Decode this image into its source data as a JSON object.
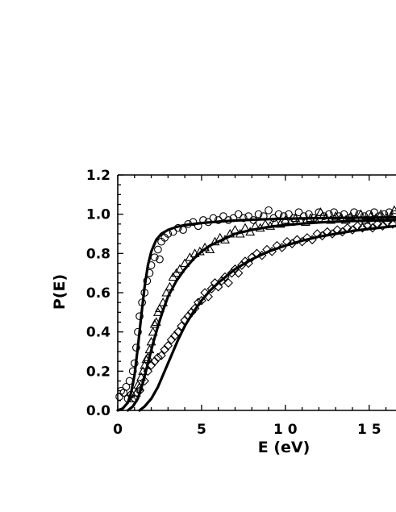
{
  "chart_data": {
    "type": "scatter",
    "title": "",
    "xlabel": "E  (eV)",
    "ylabel": "P(E)",
    "xlim": [
      0,
      16.6
    ],
    "ylim": [
      0,
      1.2
    ],
    "x_ticks": [
      0,
      5,
      10,
      15
    ],
    "x_tick_labels": [
      "0",
      "5",
      "1 0",
      "1 5"
    ],
    "y_ticks": [
      0,
      0.2,
      0.4,
      0.6,
      0.8,
      1.0,
      1.2
    ],
    "y_tick_labels": [
      "0.0",
      "0.2",
      "0.4",
      "0.6",
      "0.8",
      "1.0",
      "1.2"
    ],
    "grid": false,
    "legend": "none",
    "series": [
      {
        "marker": "circle",
        "color": "#000000",
        "points": [
          [
            0.1,
            0.07
          ],
          [
            0.2,
            0.1
          ],
          [
            0.35,
            0.09
          ],
          [
            0.5,
            0.12
          ],
          [
            0.6,
            0.06
          ],
          [
            0.7,
            0.15
          ],
          [
            0.8,
            0.08
          ],
          [
            0.9,
            0.2
          ],
          [
            1.0,
            0.24
          ],
          [
            1.1,
            0.32
          ],
          [
            1.2,
            0.4
          ],
          [
            1.3,
            0.48
          ],
          [
            1.45,
            0.55
          ],
          [
            1.6,
            0.6
          ],
          [
            1.75,
            0.66
          ],
          [
            1.9,
            0.7
          ],
          [
            2.0,
            0.74
          ],
          [
            2.2,
            0.78
          ],
          [
            2.4,
            0.82
          ],
          [
            2.5,
            0.77
          ],
          [
            2.6,
            0.86
          ],
          [
            2.8,
            0.88
          ],
          [
            3.0,
            0.9
          ],
          [
            3.3,
            0.91
          ],
          [
            3.6,
            0.93
          ],
          [
            3.9,
            0.92
          ],
          [
            4.2,
            0.95
          ],
          [
            4.5,
            0.96
          ],
          [
            4.8,
            0.94
          ],
          [
            5.1,
            0.97
          ],
          [
            5.4,
            0.96
          ],
          [
            5.7,
            0.98
          ],
          [
            6.0,
            0.97
          ],
          [
            6.3,
            0.99
          ],
          [
            6.6,
            0.97
          ],
          [
            6.9,
            0.98
          ],
          [
            7.2,
            1.0
          ],
          [
            7.5,
            0.98
          ],
          [
            7.8,
            0.99
          ],
          [
            8.1,
            0.97
          ],
          [
            8.4,
            1.0
          ],
          [
            8.7,
            0.99
          ],
          [
            9.0,
            1.02
          ],
          [
            9.3,
            0.98
          ],
          [
            9.6,
            1.0
          ],
          [
            9.9,
            0.99
          ],
          [
            10.2,
            1.0
          ],
          [
            10.5,
            0.98
          ],
          [
            10.8,
            1.01
          ],
          [
            11.1,
            0.99
          ],
          [
            11.4,
            1.0
          ],
          [
            11.7,
            0.98
          ],
          [
            12.0,
            1.01
          ],
          [
            12.3,
            0.99
          ],
          [
            12.6,
            1.0
          ],
          [
            12.9,
            1.01
          ],
          [
            13.2,
            0.99
          ],
          [
            13.5,
            1.0
          ],
          [
            13.8,
            0.98
          ],
          [
            14.1,
            1.01
          ],
          [
            14.4,
            1.0
          ],
          [
            14.7,
            0.99
          ],
          [
            15.0,
            1.0
          ],
          [
            15.3,
            1.01
          ],
          [
            15.6,
            0.99
          ],
          [
            15.9,
            1.0
          ],
          [
            16.2,
            1.01
          ],
          [
            16.5,
            1.0
          ]
        ]
      },
      {
        "marker": "triangle",
        "color": "#000000",
        "points": [
          [
            0.9,
            0.06
          ],
          [
            1.1,
            0.09
          ],
          [
            1.2,
            0.13
          ],
          [
            1.3,
            0.12
          ],
          [
            1.4,
            0.17
          ],
          [
            1.5,
            0.2
          ],
          [
            1.6,
            0.23
          ],
          [
            1.7,
            0.26
          ],
          [
            1.8,
            0.27
          ],
          [
            1.9,
            0.31
          ],
          [
            2.0,
            0.35
          ],
          [
            2.1,
            0.4
          ],
          [
            2.2,
            0.44
          ],
          [
            2.3,
            0.45
          ],
          [
            2.4,
            0.5
          ],
          [
            2.5,
            0.52
          ],
          [
            2.7,
            0.55
          ],
          [
            2.9,
            0.6
          ],
          [
            3.1,
            0.63
          ],
          [
            3.3,
            0.68
          ],
          [
            3.5,
            0.7
          ],
          [
            3.7,
            0.72
          ],
          [
            4.0,
            0.75
          ],
          [
            4.3,
            0.78
          ],
          [
            4.6,
            0.8
          ],
          [
            4.9,
            0.81
          ],
          [
            5.2,
            0.83
          ],
          [
            5.5,
            0.82
          ],
          [
            5.8,
            0.86
          ],
          [
            6.1,
            0.88
          ],
          [
            6.4,
            0.87
          ],
          [
            6.7,
            0.9
          ],
          [
            7.0,
            0.92
          ],
          [
            7.3,
            0.9
          ],
          [
            7.6,
            0.93
          ],
          [
            7.9,
            0.91
          ],
          [
            8.2,
            0.94
          ],
          [
            8.5,
            0.93
          ],
          [
            8.8,
            0.95
          ],
          [
            9.1,
            0.94
          ],
          [
            9.4,
            0.96
          ],
          [
            9.7,
            0.95
          ],
          [
            10.0,
            0.97
          ],
          [
            10.3,
            0.96
          ],
          [
            10.6,
            0.98
          ],
          [
            10.9,
            0.97
          ],
          [
            11.2,
            0.96
          ],
          [
            11.5,
            0.98
          ],
          [
            11.8,
            0.97
          ],
          [
            12.1,
            1.01
          ],
          [
            12.4,
            0.98
          ],
          [
            12.7,
            0.97
          ],
          [
            13.0,
            0.99
          ],
          [
            13.3,
            0.98
          ],
          [
            13.6,
            0.97
          ],
          [
            13.9,
            0.99
          ],
          [
            14.2,
            0.98
          ],
          [
            14.5,
            1.0
          ],
          [
            14.8,
            0.97
          ],
          [
            15.1,
            0.99
          ],
          [
            15.4,
            0.98
          ],
          [
            15.7,
            1.0
          ],
          [
            16.0,
            0.98
          ],
          [
            16.3,
            0.99
          ],
          [
            16.5,
            1.02
          ]
        ]
      },
      {
        "marker": "diamond",
        "color": "#000000",
        "points": [
          [
            1.0,
            0.06
          ],
          [
            1.3,
            0.1
          ],
          [
            1.6,
            0.15
          ],
          [
            1.8,
            0.2
          ],
          [
            2.0,
            0.23
          ],
          [
            2.2,
            0.25
          ],
          [
            2.4,
            0.27
          ],
          [
            2.6,
            0.28
          ],
          [
            2.8,
            0.31
          ],
          [
            3.0,
            0.33
          ],
          [
            3.2,
            0.36
          ],
          [
            3.4,
            0.38
          ],
          [
            3.6,
            0.4
          ],
          [
            3.8,
            0.43
          ],
          [
            4.0,
            0.46
          ],
          [
            4.2,
            0.48
          ],
          [
            4.4,
            0.5
          ],
          [
            4.6,
            0.52
          ],
          [
            4.8,
            0.55
          ],
          [
            5.0,
            0.56
          ],
          [
            5.2,
            0.6
          ],
          [
            5.4,
            0.58
          ],
          [
            5.6,
            0.62
          ],
          [
            5.8,
            0.65
          ],
          [
            6.0,
            0.63
          ],
          [
            6.2,
            0.66
          ],
          [
            6.4,
            0.68
          ],
          [
            6.6,
            0.65
          ],
          [
            6.8,
            0.7
          ],
          [
            7.0,
            0.72
          ],
          [
            7.2,
            0.7
          ],
          [
            7.4,
            0.74
          ],
          [
            7.6,
            0.76
          ],
          [
            7.8,
            0.75
          ],
          [
            8.0,
            0.78
          ],
          [
            8.3,
            0.8
          ],
          [
            8.6,
            0.79
          ],
          [
            8.9,
            0.82
          ],
          [
            9.2,
            0.81
          ],
          [
            9.5,
            0.84
          ],
          [
            9.8,
            0.83
          ],
          [
            10.1,
            0.86
          ],
          [
            10.4,
            0.85
          ],
          [
            10.7,
            0.87
          ],
          [
            11.0,
            0.86
          ],
          [
            11.3,
            0.88
          ],
          [
            11.6,
            0.87
          ],
          [
            11.9,
            0.9
          ],
          [
            12.2,
            0.89
          ],
          [
            12.5,
            0.91
          ],
          [
            12.8,
            0.9
          ],
          [
            13.1,
            0.92
          ],
          [
            13.4,
            0.91
          ],
          [
            13.7,
            0.93
          ],
          [
            14.0,
            0.92
          ],
          [
            14.3,
            0.94
          ],
          [
            14.6,
            0.93
          ],
          [
            14.9,
            0.94
          ],
          [
            15.2,
            0.93
          ],
          [
            15.5,
            0.95
          ],
          [
            15.8,
            0.94
          ],
          [
            16.1,
            0.96
          ],
          [
            16.4,
            0.95
          ]
        ]
      }
    ],
    "fit_curves": [
      {
        "style": "solid",
        "color": "#000000",
        "stroke_width": 3.2,
        "points": [
          [
            0.0,
            0.0
          ],
          [
            0.3,
            0.01
          ],
          [
            0.6,
            0.04
          ],
          [
            0.8,
            0.09
          ],
          [
            1.0,
            0.18
          ],
          [
            1.2,
            0.32
          ],
          [
            1.4,
            0.48
          ],
          [
            1.6,
            0.63
          ],
          [
            1.8,
            0.74
          ],
          [
            2.0,
            0.81
          ],
          [
            2.3,
            0.87
          ],
          [
            2.6,
            0.9
          ],
          [
            3.0,
            0.92
          ],
          [
            3.5,
            0.935
          ],
          [
            4.0,
            0.945
          ],
          [
            5.0,
            0.955
          ],
          [
            6.0,
            0.962
          ],
          [
            7.0,
            0.968
          ],
          [
            8.0,
            0.972
          ],
          [
            9.0,
            0.975
          ],
          [
            10.0,
            0.977
          ],
          [
            12.0,
            0.98
          ],
          [
            14.0,
            0.982
          ],
          [
            16.6,
            0.984
          ]
        ]
      },
      {
        "style": "solid",
        "color": "#000000",
        "stroke_width": 3.2,
        "points": [
          [
            0.6,
            0.0
          ],
          [
            0.9,
            0.02
          ],
          [
            1.2,
            0.06
          ],
          [
            1.5,
            0.14
          ],
          [
            1.8,
            0.24
          ],
          [
            2.1,
            0.34
          ],
          [
            2.4,
            0.43
          ],
          [
            2.7,
            0.51
          ],
          [
            3.0,
            0.58
          ],
          [
            3.5,
            0.66
          ],
          [
            4.0,
            0.72
          ],
          [
            4.5,
            0.77
          ],
          [
            5.0,
            0.81
          ],
          [
            5.5,
            0.84
          ],
          [
            6.0,
            0.86
          ],
          [
            7.0,
            0.9
          ],
          [
            8.0,
            0.92
          ],
          [
            9.0,
            0.935
          ],
          [
            10.0,
            0.945
          ],
          [
            11.0,
            0.952
          ],
          [
            12.0,
            0.958
          ],
          [
            13.0,
            0.962
          ],
          [
            14.0,
            0.965
          ],
          [
            15.0,
            0.967
          ],
          [
            16.6,
            0.97
          ]
        ]
      },
      {
        "style": "solid",
        "color": "#000000",
        "stroke_width": 3.2,
        "points": [
          [
            1.3,
            0.0
          ],
          [
            1.6,
            0.02
          ],
          [
            2.0,
            0.06
          ],
          [
            2.4,
            0.12
          ],
          [
            2.8,
            0.2
          ],
          [
            3.2,
            0.28
          ],
          [
            3.6,
            0.36
          ],
          [
            4.0,
            0.43
          ],
          [
            4.5,
            0.5
          ],
          [
            5.0,
            0.56
          ],
          [
            5.5,
            0.61
          ],
          [
            6.0,
            0.65
          ],
          [
            7.0,
            0.72
          ],
          [
            8.0,
            0.77
          ],
          [
            9.0,
            0.81
          ],
          [
            10.0,
            0.84
          ],
          [
            11.0,
            0.865
          ],
          [
            12.0,
            0.885
          ],
          [
            13.0,
            0.9
          ],
          [
            14.0,
            0.915
          ],
          [
            15.0,
            0.925
          ],
          [
            16.6,
            0.94
          ]
        ]
      }
    ]
  }
}
